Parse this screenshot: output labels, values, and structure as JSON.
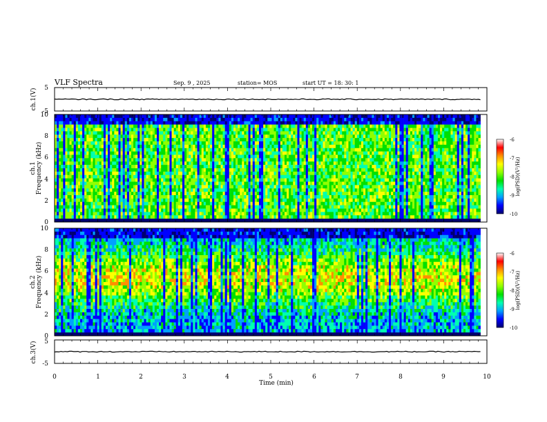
{
  "header": {
    "title": "VLF Spectra",
    "date": "Sep. 9 , 2025",
    "station": "station= MOS",
    "start": "start UT = 18: 30: 1"
  },
  "colors": {
    "colormap": [
      "#000070",
      "#0000ff",
      "#00a0ff",
      "#00ffb0",
      "#00e000",
      "#90ff00",
      "#ffff00",
      "#ff9000",
      "#ff0000",
      "#ffffff"
    ],
    "waveform": "#000000"
  },
  "chart_data": [
    {
      "type": "line",
      "name": "ch1-waveform",
      "ylabel": "ch.1(V)",
      "ylim": [
        -5,
        5
      ],
      "yticks": [
        "5",
        "-5"
      ],
      "x": [
        0,
        10
      ],
      "y": [
        0,
        0
      ]
    },
    {
      "type": "heatmap",
      "name": "ch1-spectrogram",
      "ylabel": "ch.1\nFrequency (kHz)",
      "ylim": [
        0,
        10
      ],
      "yticks": [
        "0",
        "2",
        "4",
        "6",
        "8",
        "10"
      ],
      "xlim": [
        0,
        10
      ],
      "data_end_min": 9.85,
      "colorbar": {
        "label": "log(PSD)(V²/Hz)",
        "range": [
          -10,
          -6
        ],
        "ticks": [
          "-6",
          "-7",
          "-8",
          "-9",
          "-10"
        ]
      }
    },
    {
      "type": "heatmap",
      "name": "ch2-spectrogram",
      "ylabel": "ch.2\nFrequency (kHz)",
      "ylim": [
        0,
        10
      ],
      "yticks": [
        "0",
        "2",
        "4",
        "6",
        "8",
        "10"
      ],
      "xlim": [
        0,
        10
      ],
      "data_end_min": 9.85,
      "colorbar": {
        "label": "log(PSD)(V²/Hz)",
        "range": [
          -10,
          -6
        ],
        "ticks": [
          "-6",
          "-7",
          "-8",
          "-9",
          "-10"
        ]
      }
    },
    {
      "type": "line",
      "name": "ch3-waveform",
      "ylabel": "ch.3(V)",
      "ylim": [
        -5,
        5
      ],
      "yticks": [
        "5",
        "-5"
      ],
      "x": [
        0,
        10
      ],
      "y": [
        0,
        0
      ]
    }
  ],
  "xaxis": {
    "label": "Time (min)",
    "range": [
      0,
      10
    ],
    "ticks": [
      "0",
      "1",
      "2",
      "3",
      "4",
      "5",
      "6",
      "7",
      "8",
      "9",
      "10"
    ]
  }
}
